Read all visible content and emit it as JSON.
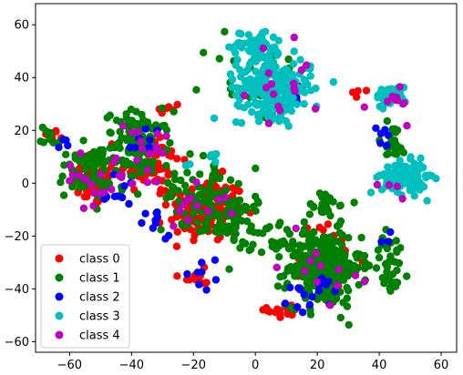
{
  "chart_data": {
    "type": "scatter",
    "title": "",
    "xlabel": "",
    "ylabel": "",
    "xlim": [
      -71,
      65
    ],
    "ylim": [
      -64,
      68
    ],
    "xticks": [
      -60,
      -40,
      -20,
      0,
      20,
      40,
      60
    ],
    "yticks": [
      -60,
      -40,
      -20,
      0,
      20,
      40,
      60
    ],
    "grid": false,
    "legend_position": "lower-left",
    "colors": [
      "#ff0000",
      "#008000",
      "#0000ff",
      "#00bfbf",
      "#bf00bf"
    ],
    "series": [
      {
        "name": "class 0",
        "color": "#ff0000",
        "clusters": [
          {
            "center": [
              -66,
              18
            ],
            "spread": [
              2,
              2
            ],
            "count": 8
          },
          {
            "center": [
              -52,
              0
            ],
            "spread": [
              6,
              7
            ],
            "count": 55
          },
          {
            "center": [
              -34,
              8
            ],
            "spread": [
              8,
              10
            ],
            "count": 55
          },
          {
            "center": [
              -16,
              -10
            ],
            "spread": [
              10,
              10
            ],
            "count": 140
          },
          {
            "center": [
              -19,
              -36
            ],
            "spread": [
              3,
              3
            ],
            "count": 12
          },
          {
            "center": [
              -28,
              28
            ],
            "spread": [
              3,
              3
            ],
            "count": 8
          },
          {
            "center": [
              10,
              -48
            ],
            "spread": [
              5,
              3
            ],
            "count": 18
          },
          {
            "center": [
              22,
              -30
            ],
            "spread": [
              10,
              12
            ],
            "count": 35
          },
          {
            "center": [
              34,
              35
            ],
            "spread": [
              2,
              2
            ],
            "count": 4
          }
        ]
      },
      {
        "name": "class 1",
        "color": "#008000",
        "clusters": [
          {
            "center": [
              -66,
              18
            ],
            "spread": [
              3,
              3
            ],
            "count": 10
          },
          {
            "center": [
              -55,
              4
            ],
            "spread": [
              7,
              8
            ],
            "count": 70
          },
          {
            "center": [
              -38,
              14
            ],
            "spread": [
              9,
              11
            ],
            "count": 120
          },
          {
            "center": [
              -18,
              -4
            ],
            "spread": [
              10,
              12
            ],
            "count": 70
          },
          {
            "center": [
              -6,
              -14
            ],
            "spread": [
              8,
              8
            ],
            "count": 60
          },
          {
            "center": [
              22,
              -32
            ],
            "spread": [
              10,
              12
            ],
            "count": 280
          },
          {
            "center": [
              22,
              -8
            ],
            "spread": [
              4,
              4
            ],
            "count": 25
          },
          {
            "center": [
              8,
              -24
            ],
            "spread": [
              6,
              8
            ],
            "count": 25
          },
          {
            "center": [
              0,
              40
            ],
            "spread": [
              14,
              14
            ],
            "count": 25
          },
          {
            "center": [
              44,
              14
            ],
            "spread": [
              5,
              8
            ],
            "count": 22
          },
          {
            "center": [
              44,
              -30
            ],
            "spread": [
              5,
              10
            ],
            "count": 35
          }
        ]
      },
      {
        "name": "class 2",
        "color": "#0000ff",
        "clusters": [
          {
            "center": [
              -62,
              15
            ],
            "spread": [
              2,
              2
            ],
            "count": 4
          },
          {
            "center": [
              -45,
              -2
            ],
            "spread": [
              6,
              8
            ],
            "count": 10
          },
          {
            "center": [
              -32,
              -18
            ],
            "spread": [
              5,
              7
            ],
            "count": 10
          },
          {
            "center": [
              -14,
              -34
            ],
            "spread": [
              5,
              5
            ],
            "count": 8
          },
          {
            "center": [
              -35,
              16
            ],
            "spread": [
              6,
              6
            ],
            "count": 8
          },
          {
            "center": [
              18,
              -42
            ],
            "spread": [
              8,
              6
            ],
            "count": 16
          },
          {
            "center": [
              12,
              34
            ],
            "spread": [
              6,
              4
            ],
            "count": 8
          },
          {
            "center": [
              40,
              20
            ],
            "spread": [
              5,
              6
            ],
            "count": 6
          },
          {
            "center": [
              42,
              -20
            ],
            "spread": [
              4,
              4
            ],
            "count": 3
          }
        ]
      },
      {
        "name": "class 3",
        "color": "#00bfbf",
        "clusters": [
          {
            "center": [
              6,
              36
            ],
            "spread": [
              10,
              9
            ],
            "count": 240
          },
          {
            "center": [
              0,
              52
            ],
            "spread": [
              7,
              5
            ],
            "count": 60
          },
          {
            "center": [
              48,
              2
            ],
            "spread": [
              6,
              5
            ],
            "count": 130
          },
          {
            "center": [
              44,
              33
            ],
            "spread": [
              4,
              3
            ],
            "count": 55
          },
          {
            "center": [
              -14,
              11
            ],
            "spread": [
              3,
              2
            ],
            "count": 6
          },
          {
            "center": [
              -22,
              8
            ],
            "spread": [
              2,
              2
            ],
            "count": 3
          }
        ]
      },
      {
        "name": "class 4",
        "color": "#bf00bf",
        "clusters": [
          {
            "center": [
              -52,
              0
            ],
            "spread": [
              8,
              8
            ],
            "count": 18
          },
          {
            "center": [
              -38,
              12
            ],
            "spread": [
              8,
              10
            ],
            "count": 18
          },
          {
            "center": [
              -18,
              -8
            ],
            "spread": [
              8,
              8
            ],
            "count": 12
          },
          {
            "center": [
              8,
              38
            ],
            "spread": [
              12,
              12
            ],
            "count": 16
          },
          {
            "center": [
              46,
              30
            ],
            "spread": [
              6,
              8
            ],
            "count": 10
          },
          {
            "center": [
              20,
              -32
            ],
            "spread": [
              10,
              10
            ],
            "count": 12
          },
          {
            "center": [
              44,
              0
            ],
            "spread": [
              4,
              4
            ],
            "count": 4
          }
        ]
      }
    ]
  }
}
